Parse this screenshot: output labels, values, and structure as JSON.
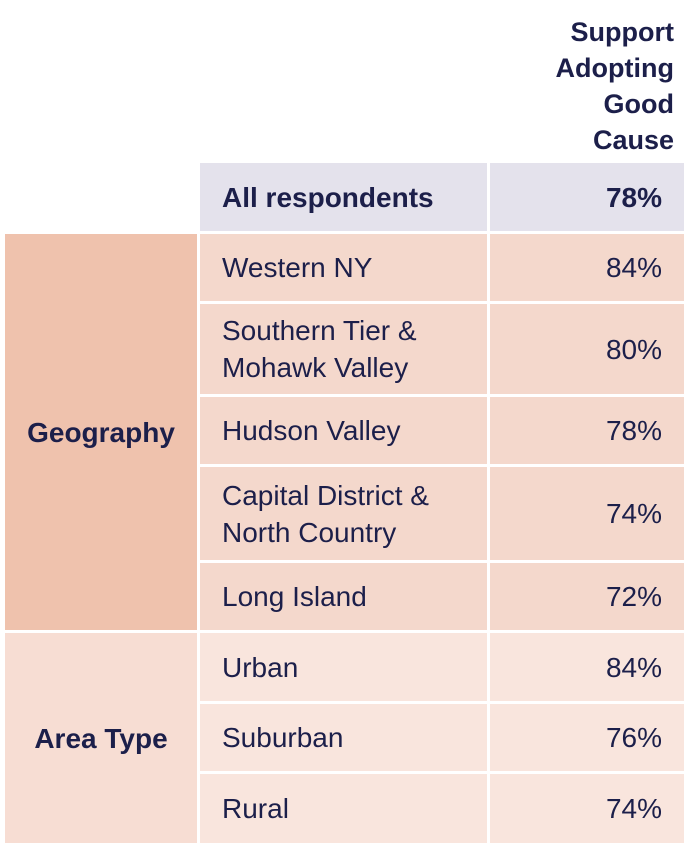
{
  "header": {
    "column_title_lines": [
      "Support",
      "Adopting",
      "Good",
      "Cause"
    ]
  },
  "all_respondents": {
    "label": "All respondents",
    "value": "78%"
  },
  "groups": [
    {
      "name": "Geography",
      "rows": [
        {
          "label_lines": [
            "Western NY"
          ],
          "value": "84%"
        },
        {
          "label_lines": [
            "Southern Tier &",
            "Mohawk Valley"
          ],
          "value": "80%"
        },
        {
          "label_lines": [
            "Hudson Valley"
          ],
          "value": "78%"
        },
        {
          "label_lines": [
            "Capital District &",
            "North Country"
          ],
          "value": "74%"
        },
        {
          "label_lines": [
            "Long Island"
          ],
          "value": "72%"
        }
      ]
    },
    {
      "name": "Area Type",
      "rows": [
        {
          "label_lines": [
            "Urban"
          ],
          "value": "84%"
        },
        {
          "label_lines": [
            "Suburban"
          ],
          "value": "76%"
        },
        {
          "label_lines": [
            "Rural"
          ],
          "value": "74%"
        }
      ]
    }
  ]
}
